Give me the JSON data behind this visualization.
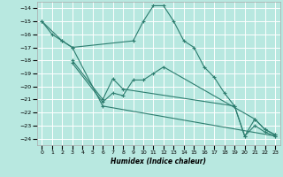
{
  "background_color": "#b8e8e0",
  "grid_color": "#ffffff",
  "line_color": "#2d7d6f",
  "xlabel": "Humidex (Indice chaleur)",
  "xlim": [
    -0.5,
    23.5
  ],
  "ylim": [
    -24.5,
    -13.5
  ],
  "yticks": [
    -14,
    -15,
    -16,
    -17,
    -18,
    -19,
    -20,
    -21,
    -22,
    -23,
    -24
  ],
  "xticks": [
    0,
    1,
    2,
    3,
    4,
    5,
    6,
    7,
    8,
    9,
    10,
    11,
    12,
    13,
    14,
    15,
    16,
    17,
    18,
    19,
    20,
    21,
    22,
    23
  ],
  "series1_x": [
    0,
    1,
    2,
    3,
    9,
    10,
    11,
    12,
    13,
    14,
    15,
    16,
    17,
    18,
    19,
    20,
    21,
    22,
    23
  ],
  "series1_y": [
    -15,
    -16,
    -16.5,
    -17,
    -16.5,
    -15,
    -13.8,
    -13.8,
    -15,
    -16.5,
    -17,
    -18.5,
    -19.3,
    -20.5,
    -21.5,
    -23.8,
    -23.0,
    -23.5,
    -23.8
  ],
  "series2_x": [
    0,
    2,
    3,
    6,
    23
  ],
  "series2_y": [
    -15,
    -16.5,
    -17,
    -21.5,
    -23.8
  ],
  "series3_x": [
    3,
    6,
    7,
    8,
    9,
    10,
    11,
    12,
    21,
    22,
    23
  ],
  "series3_y": [
    -18.2,
    -21.2,
    -20.5,
    -20.7,
    -19.5,
    -19.5,
    -19.0,
    -18.5,
    -22.5,
    -23.3,
    -23.7
  ],
  "series4_x": [
    3,
    6,
    7,
    8,
    19,
    20,
    21,
    22,
    23
  ],
  "series4_y": [
    -18,
    -21,
    -19.4,
    -20.2,
    -21.5,
    -23.8,
    -22.5,
    -23.3,
    -23.7
  ]
}
